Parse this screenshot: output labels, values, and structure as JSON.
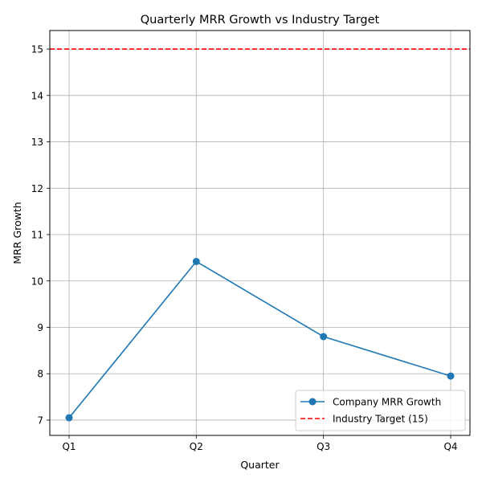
{
  "chart_data": {
    "type": "line",
    "title": "Quarterly MRR Growth vs Industry Target",
    "xlabel": "Quarter",
    "ylabel": "MRR Growth",
    "categories": [
      "Q1",
      "Q2",
      "Q3",
      "Q4"
    ],
    "ylim": [
      6.67,
      15.4
    ],
    "yticks": [
      7,
      8,
      9,
      10,
      11,
      12,
      13,
      14,
      15
    ],
    "grid": true,
    "legend_position": "lower-right",
    "series": [
      {
        "name": "Company MRR Growth",
        "values": [
          7.05,
          10.42,
          8.8,
          7.95
        ],
        "color": "#1f77b4",
        "style": "solid",
        "marker": "circle"
      }
    ],
    "reference_lines": [
      {
        "name": "Industry Target (15)",
        "value": 15,
        "color": "#ff0000",
        "style": "dashed"
      }
    ]
  }
}
